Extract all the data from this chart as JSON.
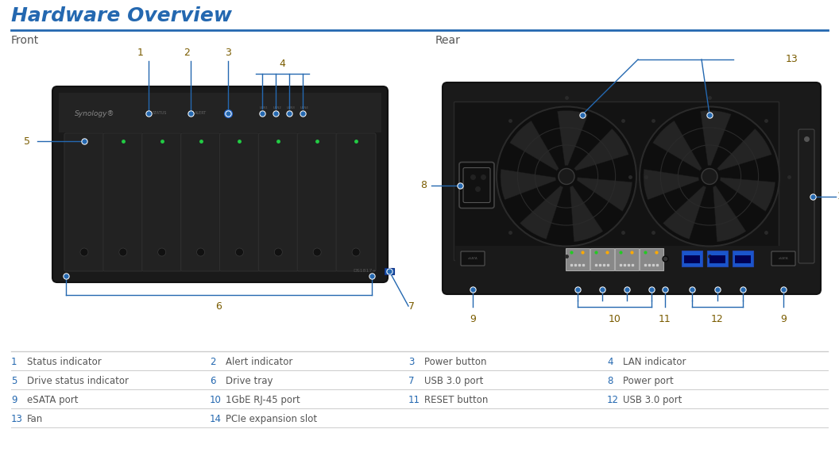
{
  "title": "Hardware Overview",
  "title_color": "#2468b0",
  "title_fontsize": 18,
  "divider_color": "#2468b0",
  "section_front": "Front",
  "section_rear": "Rear",
  "section_fontsize": 10,
  "section_color": "#555555",
  "bg_color": "#ffffff",
  "ann_color": "#2468b0",
  "num_color": "#7a5c00",
  "table_num_color": "#2468b0",
  "table_text_color": "#555555",
  "table_line_color": "#cccccc",
  "table_entries": [
    [
      1,
      "Status indicator",
      2,
      "Alert indicator",
      3,
      "Power button",
      4,
      "LAN indicator"
    ],
    [
      5,
      "Drive status indicator",
      6,
      "Drive tray",
      7,
      "USB 3.0 port",
      8,
      "Power port"
    ],
    [
      9,
      "eSATA port",
      10,
      "1GbE RJ-45 port",
      11,
      "RESET button",
      12,
      "USB 3.0 port"
    ],
    [
      13,
      "Fan",
      14,
      "PCIe expansion slot",
      null,
      null,
      null,
      null
    ]
  ]
}
